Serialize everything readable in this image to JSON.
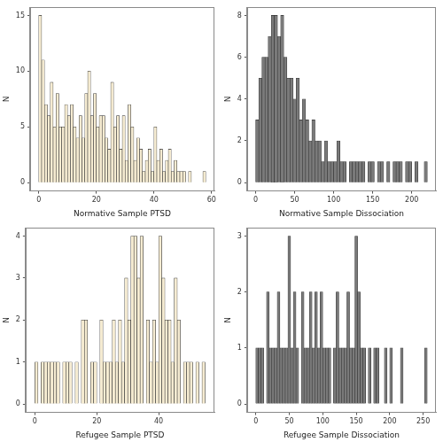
{
  "chart_data": [
    {
      "type": "histogram",
      "x_label": "Normative Sample PTSD",
      "y_label": "N",
      "color": "#f6ecd2",
      "grid": false,
      "bins": [
        0,
        1,
        2,
        3,
        4,
        5,
        6,
        7,
        8,
        9,
        10,
        11,
        12,
        13,
        14,
        15,
        16,
        17,
        18,
        19,
        20,
        21,
        22,
        23,
        24,
        25,
        26,
        27,
        28,
        29,
        30,
        31,
        32,
        33,
        34,
        35,
        36,
        37,
        38,
        39,
        40,
        41,
        42,
        43,
        44,
        45,
        46,
        47,
        48,
        49,
        50,
        51,
        52,
        53,
        54,
        55,
        56,
        57,
        58
      ],
      "counts": [
        15,
        11,
        7,
        6,
        9,
        5,
        8,
        5,
        5,
        7,
        6,
        7,
        5,
        4,
        6,
        4,
        8,
        10,
        6,
        8,
        5,
        6,
        6,
        4,
        3,
        9,
        5,
        6,
        3,
        6,
        2,
        7,
        5,
        2,
        4,
        3,
        1,
        2,
        3,
        1,
        5,
        2,
        3,
        1,
        2,
        3,
        1,
        2,
        1,
        1,
        1,
        0,
        1,
        0,
        0,
        0,
        0,
        1
      ],
      "xlim": [
        -3,
        61
      ],
      "xticks": [
        0,
        20,
        40,
        60
      ],
      "ylim": [
        -0.75,
        15.75
      ],
      "yticks": [
        0,
        5,
        10,
        15
      ]
    },
    {
      "type": "histogram",
      "x_label": "Normative Sample Dissociation",
      "y_label": "N",
      "color": "#7a7a7a",
      "grid": false,
      "bins": [
        0,
        4,
        8,
        12,
        16,
        20,
        24,
        28,
        32,
        36,
        40,
        44,
        48,
        52,
        56,
        60,
        64,
        68,
        72,
        76,
        80,
        84,
        88,
        92,
        96,
        100,
        104,
        108,
        112,
        116,
        120,
        124,
        128,
        132,
        136,
        140,
        144,
        148,
        152,
        156,
        160,
        164,
        168,
        172,
        176,
        180,
        184,
        188,
        192,
        196,
        200,
        204,
        208,
        212,
        216,
        220
      ],
      "counts": [
        3,
        5,
        6,
        6,
        7,
        8,
        8,
        7,
        8,
        6,
        5,
        5,
        4,
        5,
        3,
        4,
        3,
        2,
        3,
        2,
        2,
        1,
        2,
        1,
        1,
        1,
        2,
        1,
        1,
        0,
        1,
        1,
        1,
        1,
        1,
        0,
        1,
        1,
        0,
        1,
        1,
        0,
        1,
        0,
        1,
        1,
        1,
        0,
        1,
        1,
        0,
        1,
        0,
        0,
        1
      ],
      "xlim": [
        -11,
        231
      ],
      "xticks": [
        0,
        50,
        100,
        150,
        200
      ],
      "ylim": [
        -0.4,
        8.4
      ],
      "yticks": [
        0,
        2,
        4,
        6,
        8
      ]
    },
    {
      "type": "histogram",
      "x_label": "Refugee Sample PTSD",
      "y_label": "N",
      "color": "#f6ecd2",
      "grid": false,
      "bins": [
        0,
        1,
        2,
        3,
        4,
        5,
        6,
        7,
        8,
        9,
        10,
        11,
        12,
        13,
        14,
        15,
        16,
        17,
        18,
        19,
        20,
        21,
        22,
        23,
        24,
        25,
        26,
        27,
        28,
        29,
        30,
        31,
        32,
        33,
        34,
        35,
        36,
        37,
        38,
        39,
        40,
        41,
        42,
        43,
        44,
        45,
        46,
        47,
        48,
        49,
        50,
        51,
        52,
        53,
        54,
        55
      ],
      "counts": [
        1,
        0,
        1,
        1,
        1,
        1,
        1,
        1,
        0,
        1,
        1,
        1,
        0,
        1,
        0,
        2,
        2,
        0,
        1,
        1,
        0,
        2,
        1,
        1,
        1,
        2,
        1,
        2,
        1,
        3,
        2,
        4,
        4,
        3,
        4,
        0,
        2,
        1,
        2,
        1,
        4,
        3,
        2,
        2,
        1,
        3,
        2,
        0,
        1,
        1,
        1,
        0,
        1,
        0,
        1
      ],
      "xlim": [
        -3,
        58
      ],
      "xticks": [
        0,
        20,
        40
      ],
      "ylim": [
        -0.2,
        4.2
      ],
      "yticks": [
        0,
        1,
        2,
        3,
        4
      ]
    },
    {
      "type": "histogram",
      "x_label": "Refugee Sample Dissociation",
      "y_label": "N",
      "color": "#7a7a7a",
      "grid": false,
      "bins": [
        0,
        4,
        8,
        12,
        16,
        20,
        24,
        28,
        32,
        36,
        40,
        44,
        48,
        52,
        56,
        60,
        64,
        68,
        72,
        76,
        80,
        84,
        88,
        92,
        96,
        100,
        104,
        108,
        112,
        116,
        120,
        124,
        128,
        132,
        136,
        140,
        144,
        148,
        152,
        156,
        160,
        164,
        168,
        172,
        176,
        180,
        184,
        188,
        192,
        196,
        200,
        204,
        208,
        212,
        216,
        220,
        224,
        228,
        232,
        236,
        240,
        244,
        248,
        252,
        256
      ],
      "counts": [
        1,
        1,
        1,
        0,
        2,
        1,
        1,
        1,
        2,
        1,
        1,
        1,
        3,
        1,
        2,
        1,
        0,
        2,
        1,
        1,
        2,
        1,
        2,
        1,
        2,
        1,
        1,
        1,
        0,
        1,
        2,
        1,
        1,
        1,
        2,
        1,
        1,
        3,
        2,
        1,
        1,
        0,
        1,
        0,
        1,
        1,
        0,
        0,
        1,
        0,
        1,
        0,
        0,
        0,
        1,
        0,
        0,
        0,
        0,
        0,
        0,
        0,
        0,
        1
      ],
      "xlim": [
        -13,
        269
      ],
      "xticks": [
        0,
        50,
        100,
        150,
        200,
        250
      ],
      "ylim": [
        -0.15,
        3.15
      ],
      "yticks": [
        0,
        1,
        2,
        3
      ]
    }
  ]
}
